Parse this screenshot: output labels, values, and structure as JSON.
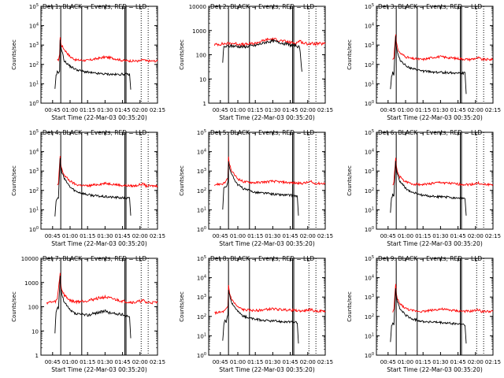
{
  "figure": {
    "xlabel": "Start Time (22-Mar-03 00:35:20)",
    "ylabel": "Counts/sec",
    "colors": {
      "events": "#000000",
      "lld": "#ff0000",
      "axes": "#000000"
    },
    "x_ticks": [
      "00:45",
      "01:00",
      "01:15",
      "01:30",
      "01:45",
      "02:00",
      "02:15"
    ]
  },
  "chart_data": [
    {
      "type": "line",
      "title": "Det 1: BLACK = Events, RED = LLD",
      "ylim": [
        1,
        100000
      ],
      "yscale": "log",
      "y_tick_labels": [
        "10^0",
        "10^1",
        "10^2",
        "10^3",
        "10^4",
        "10^5"
      ],
      "xlim_minutes_from_0035": [
        0,
        100
      ],
      "events_level": [
        [
          12,
          5
        ],
        [
          13,
          25
        ],
        [
          14,
          40
        ],
        [
          15,
          35
        ],
        [
          16,
          50
        ],
        [
          16.5,
          2000
        ],
        [
          17,
          800
        ],
        [
          18,
          500
        ],
        [
          20,
          150
        ],
        [
          25,
          80
        ],
        [
          30,
          55
        ],
        [
          35,
          45
        ],
        [
          45,
          35
        ],
        [
          55,
          32
        ],
        [
          65,
          30
        ],
        [
          72,
          32
        ],
        [
          76,
          30
        ],
        [
          77,
          5
        ]
      ],
      "lld_level": [
        [
          14,
          150
        ],
        [
          15,
          180
        ],
        [
          16,
          300
        ],
        [
          16.5,
          2600
        ],
        [
          17,
          1200
        ],
        [
          18,
          900
        ],
        [
          20,
          600
        ],
        [
          25,
          250
        ],
        [
          30,
          170
        ],
        [
          40,
          160
        ],
        [
          50,
          210
        ],
        [
          55,
          240
        ],
        [
          60,
          220
        ],
        [
          70,
          160
        ],
        [
          80,
          150
        ],
        [
          85,
          150
        ],
        [
          88,
          180
        ],
        [
          90,
          150
        ],
        [
          100,
          150
        ]
      ],
      "markers_solid": [
        17,
        35,
        72,
        73
      ],
      "markers_dotted": [
        86,
        92
      ]
    },
    {
      "type": "line",
      "title": "Det 2: BLACK = Events, RED = LLD",
      "ylim": [
        1,
        10000
      ],
      "yscale": "log",
      "y_tick_labels": [
        "1",
        "10",
        "100",
        "1000",
        "10000"
      ],
      "xlim_minutes_from_0035": [
        0,
        100
      ],
      "events_level": [
        [
          12,
          50
        ],
        [
          13,
          210
        ],
        [
          20,
          230
        ],
        [
          30,
          210
        ],
        [
          40,
          240
        ],
        [
          50,
          340
        ],
        [
          55,
          370
        ],
        [
          60,
          330
        ],
        [
          70,
          250
        ],
        [
          75,
          240
        ],
        [
          78,
          200
        ],
        [
          80,
          20
        ]
      ],
      "lld_level": [
        [
          5,
          260
        ],
        [
          12,
          280
        ],
        [
          20,
          300
        ],
        [
          30,
          260
        ],
        [
          40,
          300
        ],
        [
          50,
          420
        ],
        [
          55,
          450
        ],
        [
          60,
          400
        ],
        [
          70,
          320
        ],
        [
          75,
          300
        ],
        [
          78,
          380
        ],
        [
          82,
          290
        ],
        [
          100,
          280
        ]
      ],
      "markers_solid": [
        17,
        35,
        72,
        73
      ],
      "markers_dotted": [
        86,
        92
      ]
    },
    {
      "type": "line",
      "title": "Det 3: BLACK = Events, RED = LLD",
      "ylim": [
        1,
        100000
      ],
      "yscale": "log",
      "y_tick_labels": [
        "10^0",
        "10^1",
        "10^2",
        "10^3",
        "10^4",
        "10^5"
      ],
      "xlim_minutes_from_0035": [
        0,
        100
      ],
      "events_level": [
        [
          12,
          5
        ],
        [
          13,
          25
        ],
        [
          14,
          40
        ],
        [
          15,
          30
        ],
        [
          16.5,
          3000
        ],
        [
          17,
          900
        ],
        [
          18,
          400
        ],
        [
          20,
          180
        ],
        [
          25,
          90
        ],
        [
          30,
          60
        ],
        [
          40,
          45
        ],
        [
          50,
          40
        ],
        [
          60,
          38
        ],
        [
          72,
          36
        ],
        [
          76,
          35
        ],
        [
          77,
          3
        ]
      ],
      "lld_level": [
        [
          14,
          180
        ],
        [
          15,
          220
        ],
        [
          16.5,
          4000
        ],
        [
          17,
          1500
        ],
        [
          18,
          700
        ],
        [
          20,
          400
        ],
        [
          25,
          250
        ],
        [
          30,
          200
        ],
        [
          40,
          180
        ],
        [
          50,
          240
        ],
        [
          55,
          250
        ],
        [
          60,
          230
        ],
        [
          70,
          200
        ],
        [
          80,
          180
        ],
        [
          88,
          220
        ],
        [
          90,
          180
        ],
        [
          100,
          180
        ]
      ],
      "markers_solid": [
        17,
        35,
        72,
        73
      ],
      "markers_dotted": [
        86,
        92
      ]
    },
    {
      "type": "line",
      "title": "Det 4: BLACK = Events, RED = LLD",
      "ylim": [
        1,
        100000
      ],
      "yscale": "log",
      "y_tick_labels": [
        "10^0",
        "10^1",
        "10^2",
        "10^3",
        "10^4",
        "10^5"
      ],
      "xlim_minutes_from_0035": [
        0,
        100
      ],
      "events_level": [
        [
          12,
          5
        ],
        [
          13,
          30
        ],
        [
          14,
          40
        ],
        [
          15,
          35
        ],
        [
          16.5,
          5000
        ],
        [
          17,
          1500
        ],
        [
          18,
          900
        ],
        [
          20,
          400
        ],
        [
          25,
          150
        ],
        [
          30,
          90
        ],
        [
          40,
          60
        ],
        [
          50,
          50
        ],
        [
          60,
          45
        ],
        [
          72,
          40
        ],
        [
          76,
          40
        ],
        [
          77,
          5
        ]
      ],
      "lld_level": [
        [
          14,
          180
        ],
        [
          15,
          220
        ],
        [
          16.5,
          6000
        ],
        [
          17,
          2000
        ],
        [
          18,
          1200
        ],
        [
          20,
          600
        ],
        [
          25,
          300
        ],
        [
          30,
          200
        ],
        [
          40,
          170
        ],
        [
          50,
          210
        ],
        [
          55,
          230
        ],
        [
          60,
          220
        ],
        [
          70,
          180
        ],
        [
          80,
          170
        ],
        [
          88,
          220
        ],
        [
          90,
          170
        ],
        [
          100,
          170
        ]
      ],
      "markers_solid": [
        17,
        35,
        72,
        73
      ],
      "markers_dotted": [
        86,
        92
      ]
    },
    {
      "type": "line",
      "title": "Det 5: BLACK = Events, RED = LLD",
      "ylim": [
        1,
        100000
      ],
      "yscale": "log",
      "y_tick_labels": [
        "10^0",
        "10^1",
        "10^2",
        "10^3",
        "10^4",
        "10^5"
      ],
      "xlim_minutes_from_0035": [
        0,
        100
      ],
      "events_level": [
        [
          12,
          10
        ],
        [
          13,
          120
        ],
        [
          14,
          150
        ],
        [
          15,
          140
        ],
        [
          16.5,
          300
        ],
        [
          17,
          3000
        ],
        [
          18,
          1500
        ],
        [
          20,
          600
        ],
        [
          25,
          200
        ],
        [
          30,
          120
        ],
        [
          40,
          80
        ],
        [
          50,
          70
        ],
        [
          60,
          60
        ],
        [
          72,
          55
        ],
        [
          76,
          50
        ],
        [
          77,
          5
        ]
      ],
      "lld_level": [
        [
          5,
          200
        ],
        [
          12,
          220
        ],
        [
          14,
          260
        ],
        [
          16.5,
          400
        ],
        [
          17,
          5000
        ],
        [
          18,
          2000
        ],
        [
          20,
          900
        ],
        [
          25,
          400
        ],
        [
          30,
          280
        ],
        [
          40,
          250
        ],
        [
          50,
          280
        ],
        [
          55,
          300
        ],
        [
          60,
          280
        ],
        [
          70,
          250
        ],
        [
          80,
          230
        ],
        [
          88,
          280
        ],
        [
          90,
          230
        ],
        [
          100,
          230
        ]
      ],
      "markers_solid": [
        17,
        35,
        72,
        73
      ],
      "markers_dotted": [
        86,
        92
      ]
    },
    {
      "type": "line",
      "title": "Det 6: BLACK = Events, RED = LLD",
      "ylim": [
        1,
        100000
      ],
      "yscale": "log",
      "y_tick_labels": [
        "10^0",
        "10^1",
        "10^2",
        "10^3",
        "10^4",
        "10^5"
      ],
      "xlim_minutes_from_0035": [
        0,
        100
      ],
      "events_level": [
        [
          12,
          8
        ],
        [
          13,
          40
        ],
        [
          14,
          60
        ],
        [
          15,
          50
        ],
        [
          16.5,
          3000
        ],
        [
          17,
          1200
        ],
        [
          18,
          700
        ],
        [
          20,
          300
        ],
        [
          25,
          130
        ],
        [
          30,
          80
        ],
        [
          40,
          55
        ],
        [
          50,
          48
        ],
        [
          60,
          45
        ],
        [
          72,
          40
        ],
        [
          76,
          38
        ],
        [
          77,
          5
        ]
      ],
      "lld_level": [
        [
          14,
          200
        ],
        [
          15,
          250
        ],
        [
          16.5,
          5000
        ],
        [
          17,
          1800
        ],
        [
          18,
          900
        ],
        [
          20,
          500
        ],
        [
          25,
          280
        ],
        [
          30,
          220
        ],
        [
          40,
          200
        ],
        [
          50,
          240
        ],
        [
          55,
          260
        ],
        [
          60,
          240
        ],
        [
          70,
          210
        ],
        [
          80,
          200
        ],
        [
          88,
          240
        ],
        [
          90,
          200
        ],
        [
          100,
          200
        ]
      ],
      "markers_solid": [
        17,
        35,
        72,
        73
      ],
      "markers_dotted": [
        86,
        92
      ]
    },
    {
      "type": "line",
      "title": "Det 7: BLACK = Events, RED = LLD",
      "ylim": [
        1,
        10000
      ],
      "yscale": "log",
      "y_tick_labels": [
        "1",
        "10",
        "100",
        "1000",
        "10000"
      ],
      "xlim_minutes_from_0035": [
        0,
        100
      ],
      "events_level": [
        [
          12,
          8
        ],
        [
          13,
          60
        ],
        [
          14,
          90
        ],
        [
          15,
          80
        ],
        [
          16.5,
          1800
        ],
        [
          17,
          600
        ],
        [
          18,
          300
        ],
        [
          20,
          150
        ],
        [
          25,
          70
        ],
        [
          30,
          50
        ],
        [
          40,
          45
        ],
        [
          50,
          60
        ],
        [
          55,
          65
        ],
        [
          60,
          55
        ],
        [
          72,
          45
        ],
        [
          76,
          40
        ],
        [
          77,
          5
        ]
      ],
      "lld_level": [
        [
          5,
          150
        ],
        [
          12,
          160
        ],
        [
          14,
          200
        ],
        [
          16.5,
          2500
        ],
        [
          17,
          800
        ],
        [
          18,
          500
        ],
        [
          20,
          300
        ],
        [
          25,
          180
        ],
        [
          30,
          160
        ],
        [
          40,
          180
        ],
        [
          50,
          230
        ],
        [
          55,
          250
        ],
        [
          60,
          220
        ],
        [
          70,
          170
        ],
        [
          80,
          150
        ],
        [
          88,
          180
        ],
        [
          90,
          150
        ],
        [
          100,
          150
        ]
      ],
      "markers_solid": [
        17,
        35,
        72,
        73
      ],
      "markers_dotted": [
        86,
        92
      ]
    },
    {
      "type": "line",
      "title": "Det 8: BLACK = Events, RED = LLD",
      "ylim": [
        1,
        100000
      ],
      "yscale": "log",
      "y_tick_labels": [
        "10^0",
        "10^1",
        "10^2",
        "10^3",
        "10^4",
        "10^5"
      ],
      "xlim_minutes_from_0035": [
        0,
        100
      ],
      "events_level": [
        [
          12,
          5
        ],
        [
          13,
          40
        ],
        [
          14,
          60
        ],
        [
          15,
          50
        ],
        [
          16.5,
          120
        ],
        [
          17,
          2500
        ],
        [
          18,
          1200
        ],
        [
          20,
          500
        ],
        [
          25,
          180
        ],
        [
          30,
          100
        ],
        [
          40,
          70
        ],
        [
          50,
          60
        ],
        [
          60,
          55
        ],
        [
          72,
          50
        ],
        [
          76,
          48
        ],
        [
          77,
          4
        ]
      ],
      "lld_level": [
        [
          5,
          150
        ],
        [
          12,
          170
        ],
        [
          14,
          200
        ],
        [
          16.5,
          300
        ],
        [
          17,
          4000
        ],
        [
          18,
          1500
        ],
        [
          20,
          700
        ],
        [
          25,
          300
        ],
        [
          30,
          220
        ],
        [
          40,
          200
        ],
        [
          50,
          230
        ],
        [
          55,
          250
        ],
        [
          60,
          230
        ],
        [
          70,
          210
        ],
        [
          80,
          190
        ],
        [
          88,
          230
        ],
        [
          90,
          190
        ],
        [
          100,
          190
        ]
      ],
      "markers_solid": [
        17,
        35,
        72,
        73
      ],
      "markers_dotted": [
        86,
        92
      ]
    },
    {
      "type": "line",
      "title": "Det 9: BLACK = Events, RED = LLD",
      "ylim": [
        1,
        100000
      ],
      "yscale": "log",
      "y_tick_labels": [
        "10^0",
        "10^1",
        "10^2",
        "10^3",
        "10^4",
        "10^5"
      ],
      "xlim_minutes_from_0035": [
        0,
        100
      ],
      "events_level": [
        [
          12,
          5
        ],
        [
          13,
          30
        ],
        [
          14,
          50
        ],
        [
          15,
          40
        ],
        [
          16.5,
          3000
        ],
        [
          17,
          1200
        ],
        [
          18,
          600
        ],
        [
          20,
          250
        ],
        [
          25,
          120
        ],
        [
          30,
          75
        ],
        [
          40,
          55
        ],
        [
          50,
          50
        ],
        [
          60,
          45
        ],
        [
          72,
          40
        ],
        [
          76,
          38
        ],
        [
          77,
          4
        ]
      ],
      "lld_level": [
        [
          14,
          180
        ],
        [
          15,
          220
        ],
        [
          16.5,
          4500
        ],
        [
          17,
          1500
        ],
        [
          18,
          800
        ],
        [
          20,
          450
        ],
        [
          25,
          260
        ],
        [
          30,
          200
        ],
        [
          40,
          180
        ],
        [
          50,
          220
        ],
        [
          55,
          240
        ],
        [
          60,
          220
        ],
        [
          70,
          190
        ],
        [
          80,
          180
        ],
        [
          88,
          220
        ],
        [
          90,
          180
        ],
        [
          100,
          180
        ]
      ],
      "markers_solid": [
        17,
        35,
        72,
        73
      ],
      "markers_dotted": [
        86,
        92
      ]
    }
  ]
}
